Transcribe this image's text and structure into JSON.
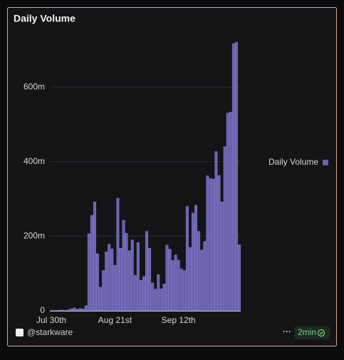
{
  "chart_data": {
    "type": "bar",
    "title": "Daily Volume",
    "categories": [
      "Jul 30th",
      null,
      null,
      null,
      null,
      null,
      null,
      null,
      null,
      null,
      null,
      null,
      null,
      null,
      null,
      null,
      null,
      null,
      null,
      null,
      null,
      null,
      "Aug 21st",
      null,
      null,
      null,
      null,
      null,
      null,
      null,
      null,
      null,
      null,
      null,
      null,
      null,
      null,
      null,
      null,
      null,
      null,
      null,
      null,
      null,
      "Sep 12th",
      null,
      null,
      null,
      null,
      null,
      null,
      null,
      null,
      null,
      null,
      null,
      null,
      null,
      null,
      null,
      null,
      null,
      null,
      null,
      null,
      null
    ],
    "series": [
      {
        "name": "Daily Volume",
        "color": "#6a62b0",
        "values": [
          1,
          1,
          1,
          2,
          2,
          1,
          3,
          6,
          8,
          4,
          6,
          5,
          14,
          207,
          256,
          292,
          153,
          63,
          108,
          158,
          178,
          166,
          122,
          302,
          168,
          243,
          208,
          161,
          190,
          95,
          183,
          82,
          92,
          213,
          168,
          75,
          58,
          97,
          59,
          72,
          176,
          165,
          135,
          150,
          136,
          113,
          108,
          280,
          170,
          262,
          283,
          213,
          163,
          186,
          362,
          355,
          353,
          427,
          363,
          292,
          440,
          530,
          533,
          716,
          720,
          177
        ]
      }
    ],
    "ylim": [
      0,
      780
    ],
    "yticks": [
      0,
      {
        "value": 200,
        "label": "200m"
      },
      {
        "value": 400,
        "label": "400m"
      },
      {
        "value": 600,
        "label": "600m"
      }
    ],
    "grid": true,
    "legend": "right"
  },
  "footer": {
    "handle": "@starkware",
    "age": "2min"
  }
}
